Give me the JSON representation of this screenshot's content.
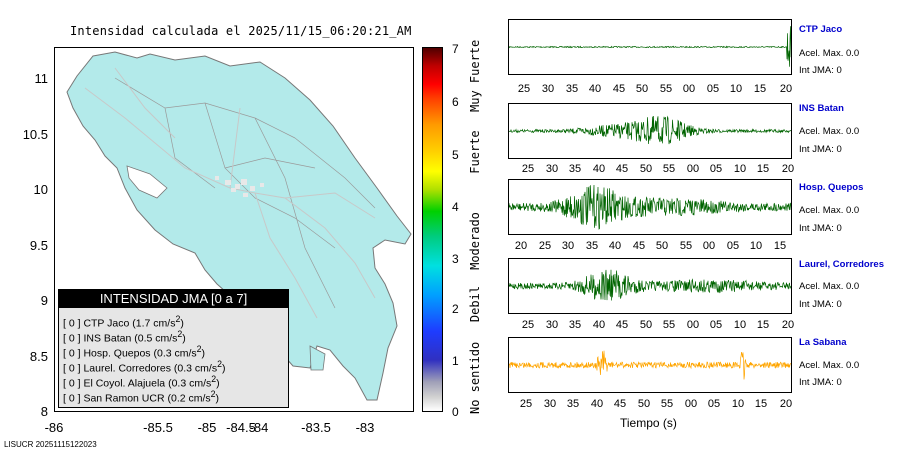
{
  "map": {
    "title": "Intensidad calculada el 2025/11/15_06:20:21_AM",
    "y_ticks": [
      "11",
      "10.5",
      "10",
      "9.5",
      "9",
      "8.5",
      "8"
    ],
    "x_ticks": [
      "-86",
      "-85.5",
      "-85",
      "-84.5",
      "-84",
      "-83.5",
      "-83"
    ],
    "land_color": "#b3eaea"
  },
  "colorbar": {
    "numbers": [
      "7",
      "6",
      "5",
      "4",
      "3",
      "2",
      "1",
      "0"
    ],
    "words": [
      "Muy Fuerte",
      "Fuerte",
      "Moderado",
      "Debil",
      "No sentido"
    ]
  },
  "legend": {
    "title": "INTENSIDAD JMA [0 a 7]",
    "items": [
      {
        "jma": "[ 0 ]",
        "station": "CTP Jaco",
        "acc": "(1.7 cm/s",
        "sup": "2",
        "close": ")"
      },
      {
        "jma": "[ 0 ]",
        "station": "INS Batan",
        "acc": "(0.5 cm/s",
        "sup": "2",
        "close": ")"
      },
      {
        "jma": "[ 0 ]",
        "station": "Hosp. Quepos",
        "acc": "(0.3 cm/s",
        "sup": "2",
        "close": ")"
      },
      {
        "jma": "[ 0 ]",
        "station": "Laurel. Corredores",
        "acc": "(0.3 cm/s",
        "sup": "2",
        "close": ")"
      },
      {
        "jma": "[ 0 ]",
        "station": "El Coyol. Alajuela",
        "acc": "(0.3 cm/s",
        "sup": "2",
        "close": ")"
      },
      {
        "jma": "[ 0 ]",
        "station": "San Ramon UCR",
        "acc": "(0.2 cm/s",
        "sup": "2",
        "close": ")"
      }
    ]
  },
  "footer": {
    "id": "LISUCR 20251115122023"
  },
  "traces": [
    {
      "name": "CTP Jaco",
      "acel": "Acel. Max. 0.0",
      "jma": "Int JMA: 0",
      "color": "#006400",
      "ticks": [
        "25",
        "30",
        "35",
        "40",
        "45",
        "50",
        "55",
        "00",
        "05",
        "10",
        "15",
        "20"
      ]
    },
    {
      "name": "INS Batan",
      "acel": "Acel. Max. 0.0",
      "jma": "Int JMA: 0",
      "color": "#006400",
      "ticks": [
        "25",
        "30",
        "35",
        "40",
        "45",
        "50",
        "55",
        "00",
        "05",
        "10",
        "15",
        "20"
      ]
    },
    {
      "name": "Hosp. Quepos",
      "acel": "Acel. Max. 0.0",
      "jma": "Int JMA: 0",
      "color": "#006400",
      "ticks": [
        "20",
        "25",
        "30",
        "35",
        "40",
        "45",
        "50",
        "55",
        "00",
        "05",
        "10",
        "15"
      ]
    },
    {
      "name": "Laurel, Corredores",
      "acel": "Acel. Max. 0.0",
      "jma": "Int JMA: 0",
      "color": "#006400",
      "ticks": [
        "25",
        "30",
        "35",
        "40",
        "45",
        "50",
        "55",
        "00",
        "05",
        "10",
        "15",
        "20"
      ]
    },
    {
      "name": "La Sabana",
      "acel": "Acel. Max. 0.0",
      "jma": "Int JMA: 0",
      "color": "#ffa500",
      "ticks": [
        "25",
        "30",
        "35",
        "40",
        "45",
        "50",
        "55",
        "00",
        "05",
        "10",
        "15",
        "20"
      ]
    }
  ],
  "x_axis_label": "Tiempo (s)"
}
